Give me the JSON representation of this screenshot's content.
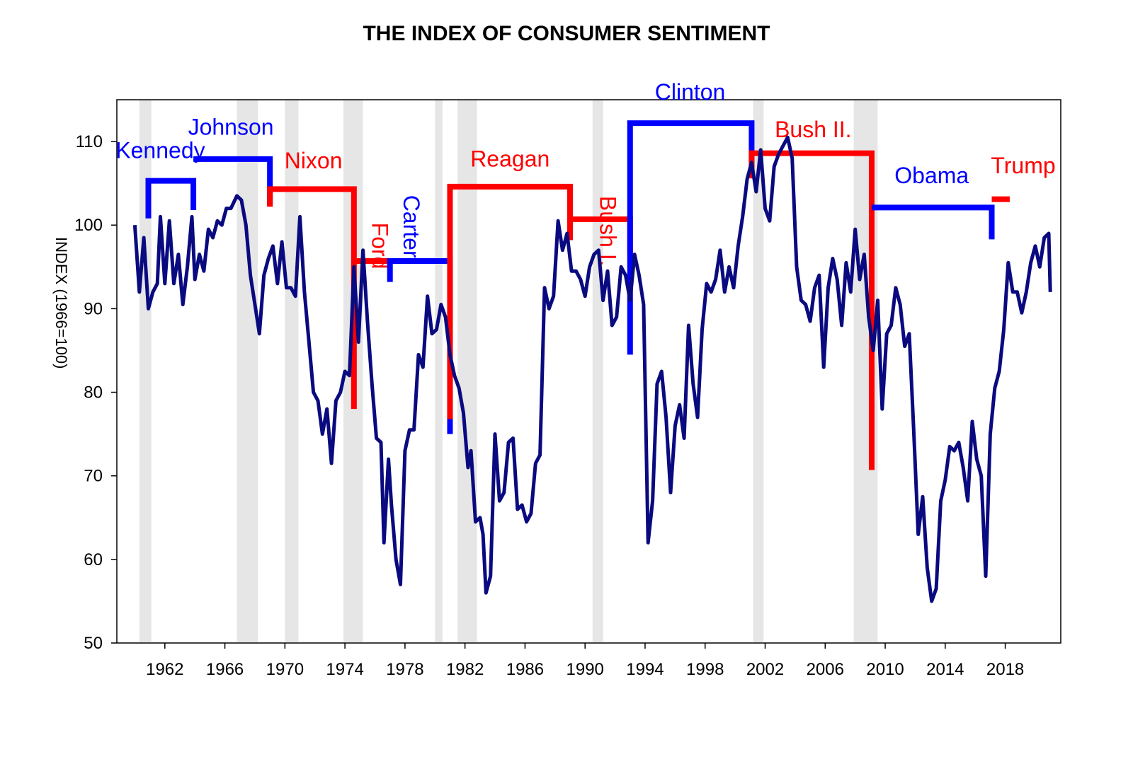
{
  "chart_data": {
    "type": "line",
    "title": "THE INDEX OF CONSUMER SENTIMENT",
    "ylabel": "INDEX (1966=100)",
    "xlabel": "",
    "xlim": [
      1958.5,
      2021.0
    ],
    "ylim": [
      50,
      115
    ],
    "y_ticks": [
      50,
      60,
      70,
      80,
      90,
      100,
      110
    ],
    "x_ticks": [
      1962,
      1966,
      1970,
      1974,
      1978,
      1982,
      1986,
      1990,
      1994,
      1998,
      2002,
      2006,
      2010,
      2014,
      2018
    ],
    "colors": {
      "line": "#0a0a80",
      "democrat": "#0000ff",
      "republican": "#ff0000",
      "recession": "#e6e6e6"
    },
    "recessions": [
      [
        1960.3,
        1961.1
      ],
      [
        1966.8,
        1968.2
      ],
      [
        1970.0,
        1970.9
      ],
      [
        1973.9,
        1975.2
      ],
      [
        1980.0,
        1980.5
      ],
      [
        1981.5,
        1982.8
      ],
      [
        1990.5,
        1991.2
      ],
      [
        2001.2,
        2001.9
      ],
      [
        2007.9,
        2009.5
      ]
    ],
    "presidents": [
      {
        "name": "Kennedy",
        "party": "D",
        "start": 1960.9,
        "end": 1963.9,
        "level": 105.3,
        "tick_start": 100.8,
        "tick_end": 101.8,
        "label_x": 1961.7,
        "label_y": 108.0,
        "vertical": false
      },
      {
        "name": "Johnson",
        "party": "D",
        "start": 1963.9,
        "end": 1969.0,
        "level": 107.9,
        "tick_end": 102.5,
        "label_x": 1966.4,
        "label_y": 110.8,
        "vertical": false
      },
      {
        "name": "Nixon",
        "party": "R",
        "start": 1969.0,
        "end": 1974.6,
        "level": 104.3,
        "tick_start": 102.2,
        "tick_end": 78.0,
        "label_x": 1971.9,
        "label_y": 106.8,
        "vertical": false
      },
      {
        "name": "Ford",
        "party": "R",
        "start": 1974.6,
        "end": 1977.0,
        "level": 95.7,
        "label_x": 1975.8,
        "label_y": 100.3,
        "vertical": true
      },
      {
        "name": "Carter",
        "party": "D",
        "start": 1977.0,
        "end": 1981.0,
        "level": 95.7,
        "tick_start": 93.2,
        "tick_end": 75.0,
        "label_x": 1977.9,
        "label_y": 103.6,
        "vertical": true
      },
      {
        "name": "Reagan",
        "party": "R",
        "start": 1981.0,
        "end": 1989.0,
        "level": 104.6,
        "tick_start": 76.8,
        "tick_end": 98.2,
        "label_x": 1985.0,
        "label_y": 107.0,
        "vertical": false
      },
      {
        "name": "Bush I.",
        "party": "R",
        "start": 1989.0,
        "end": 1993.0,
        "level": 100.7,
        "tick_end": 96.5,
        "label_x": 1991.0,
        "label_y": 103.5,
        "vertical": true
      },
      {
        "name": "Clinton",
        "party": "D",
        "start": 1993.0,
        "end": 2001.1,
        "level": 112.2,
        "tick_start": 84.5,
        "tick_end": 106.6,
        "label_x": 1997.0,
        "label_y": 115.0,
        "vertical": false
      },
      {
        "name": "Bush II.",
        "party": "R",
        "start": 2001.1,
        "end": 2009.1,
        "level": 108.6,
        "tick_start": 105.6,
        "tick_end": 70.7,
        "label_x": 2005.2,
        "label_y": 110.5,
        "vertical": false
      },
      {
        "name": "Obama",
        "party": "D",
        "start": 2009.1,
        "end": 2017.1,
        "level": 102.1,
        "tick_end": 98.3,
        "label_x": 2013.1,
        "label_y": 105.0,
        "vertical": false
      },
      {
        "name": "Trump",
        "party": "R",
        "start": 2017.1,
        "end": 2018.3,
        "level": 103.1,
        "label_x": 2019.2,
        "label_y": 106.2,
        "vertical": false
      }
    ],
    "series": [
      {
        "name": "Index of Consumer Sentiment",
        "points": [
          [
            1960.0,
            100.0
          ],
          [
            1960.3,
            92.0
          ],
          [
            1960.6,
            98.5
          ],
          [
            1960.9,
            90.0
          ],
          [
            1961.2,
            92.0
          ],
          [
            1961.5,
            93.0
          ],
          [
            1961.7,
            101.0
          ],
          [
            1962.0,
            93.0
          ],
          [
            1962.3,
            100.5
          ],
          [
            1962.6,
            93.0
          ],
          [
            1962.9,
            96.5
          ],
          [
            1963.2,
            90.5
          ],
          [
            1963.5,
            95.0
          ],
          [
            1963.8,
            101.0
          ],
          [
            1964.0,
            93.5
          ],
          [
            1964.3,
            96.5
          ],
          [
            1964.6,
            94.5
          ],
          [
            1964.9,
            99.5
          ],
          [
            1965.2,
            98.5
          ],
          [
            1965.5,
            100.5
          ],
          [
            1965.8,
            100.0
          ],
          [
            1966.1,
            102.0
          ],
          [
            1966.4,
            102.0
          ],
          [
            1966.8,
            103.5
          ],
          [
            1967.1,
            103.0
          ],
          [
            1967.4,
            100.0
          ],
          [
            1967.7,
            94.0
          ],
          [
            1968.0,
            90.5
          ],
          [
            1968.3,
            87.0
          ],
          [
            1968.6,
            94.0
          ],
          [
            1968.9,
            96.0
          ],
          [
            1969.2,
            97.5
          ],
          [
            1969.5,
            93.0
          ],
          [
            1969.8,
            98.0
          ],
          [
            1970.1,
            92.5
          ],
          [
            1970.4,
            92.5
          ],
          [
            1970.7,
            91.5
          ],
          [
            1971.0,
            101.0
          ],
          [
            1971.3,
            92.0
          ],
          [
            1971.6,
            86.0
          ],
          [
            1971.9,
            80.0
          ],
          [
            1972.2,
            79.0
          ],
          [
            1972.5,
            75.0
          ],
          [
            1972.8,
            78.0
          ],
          [
            1973.1,
            71.5
          ],
          [
            1973.4,
            79.0
          ],
          [
            1973.7,
            80.0
          ],
          [
            1974.0,
            82.5
          ],
          [
            1974.3,
            82.0
          ],
          [
            1974.6,
            95.0
          ],
          [
            1974.9,
            86.0
          ],
          [
            1975.2,
            97.0
          ],
          [
            1975.5,
            88.5
          ],
          [
            1975.8,
            81.0
          ],
          [
            1976.1,
            74.5
          ],
          [
            1976.4,
            74.0
          ],
          [
            1976.6,
            62.0
          ],
          [
            1976.9,
            72.0
          ],
          [
            1977.1,
            66.5
          ],
          [
            1977.4,
            60.0
          ],
          [
            1977.7,
            57.0
          ],
          [
            1978.0,
            73.0
          ],
          [
            1978.3,
            75.5
          ],
          [
            1978.6,
            75.5
          ],
          [
            1978.9,
            84.5
          ],
          [
            1979.2,
            83.0
          ],
          [
            1979.5,
            91.5
          ],
          [
            1979.8,
            87.0
          ],
          [
            1980.1,
            87.5
          ],
          [
            1980.4,
            90.5
          ],
          [
            1980.7,
            89.0
          ],
          [
            1981.0,
            84.5
          ],
          [
            1981.3,
            82.0
          ],
          [
            1981.6,
            80.5
          ],
          [
            1981.9,
            77.5
          ],
          [
            1982.2,
            71.0
          ],
          [
            1982.4,
            73.0
          ],
          [
            1982.7,
            64.5
          ],
          [
            1983.0,
            65.0
          ],
          [
            1983.2,
            63.0
          ],
          [
            1983.4,
            56.0
          ],
          [
            1983.7,
            58.0
          ],
          [
            1984.0,
            75.0
          ],
          [
            1984.3,
            67.0
          ],
          [
            1984.6,
            68.0
          ],
          [
            1984.9,
            74.0
          ],
          [
            1985.2,
            74.5
          ],
          [
            1985.5,
            66.0
          ],
          [
            1985.8,
            66.5
          ],
          [
            1986.1,
            64.5
          ],
          [
            1986.4,
            65.5
          ],
          [
            1986.7,
            71.5
          ],
          [
            1987.0,
            72.5
          ],
          [
            1987.3,
            92.5
          ],
          [
            1987.6,
            90.0
          ],
          [
            1987.9,
            91.5
          ],
          [
            1988.2,
            100.5
          ],
          [
            1988.5,
            97.0
          ],
          [
            1988.8,
            99.0
          ],
          [
            1989.1,
            94.5
          ],
          [
            1989.4,
            94.5
          ],
          [
            1989.7,
            93.5
          ],
          [
            1990.0,
            91.5
          ],
          [
            1990.3,
            95.0
          ],
          [
            1990.6,
            96.5
          ],
          [
            1990.9,
            97.0
          ],
          [
            1991.2,
            91.0
          ],
          [
            1991.5,
            94.5
          ],
          [
            1991.8,
            88.0
          ],
          [
            1992.1,
            89.0
          ],
          [
            1992.4,
            95.0
          ],
          [
            1992.7,
            94.0
          ],
          [
            1993.0,
            91.0
          ],
          [
            1993.3,
            96.5
          ],
          [
            1993.6,
            94.0
          ],
          [
            1993.9,
            90.5
          ],
          [
            1994.2,
            62.0
          ],
          [
            1994.5,
            67.0
          ],
          [
            1994.8,
            81.0
          ],
          [
            1995.1,
            82.5
          ],
          [
            1995.4,
            77.0
          ],
          [
            1995.7,
            68.0
          ],
          [
            1996.0,
            76.0
          ],
          [
            1996.3,
            78.5
          ],
          [
            1996.6,
            74.5
          ],
          [
            1996.9,
            88.0
          ],
          [
            1997.2,
            81.0
          ],
          [
            1997.5,
            77.0
          ],
          [
            1997.8,
            87.5
          ],
          [
            1998.1,
            93.0
          ],
          [
            1998.4,
            92.0
          ],
          [
            1998.7,
            93.5
          ],
          [
            1999.0,
            97.0
          ],
          [
            1999.3,
            92.0
          ],
          [
            1999.6,
            95.0
          ],
          [
            1999.9,
            92.5
          ],
          [
            2000.2,
            97.5
          ],
          [
            2000.5,
            101.0
          ],
          [
            2000.8,
            105.5
          ],
          [
            2001.1,
            107.5
          ],
          [
            2001.4,
            104.0
          ],
          [
            2001.7,
            109.0
          ],
          [
            2002.0,
            102.0
          ],
          [
            2002.3,
            100.5
          ],
          [
            2002.6,
            107.0
          ],
          [
            2002.9,
            108.5
          ],
          [
            2003.2,
            109.5
          ],
          [
            2003.5,
            110.5
          ],
          [
            2003.8,
            108.0
          ],
          [
            2004.1,
            95.0
          ],
          [
            2004.4,
            91.0
          ],
          [
            2004.7,
            90.5
          ],
          [
            2005.0,
            88.5
          ],
          [
            2005.3,
            92.5
          ],
          [
            2005.6,
            94.0
          ],
          [
            2005.9,
            83.0
          ],
          [
            2006.2,
            92.5
          ],
          [
            2006.5,
            96.0
          ],
          [
            2006.8,
            93.5
          ],
          [
            2007.1,
            88.0
          ],
          [
            2007.4,
            95.5
          ],
          [
            2007.7,
            92.0
          ],
          [
            2008.0,
            99.5
          ],
          [
            2008.3,
            93.5
          ],
          [
            2008.6,
            96.5
          ],
          [
            2008.9,
            89.0
          ],
          [
            2009.2,
            85.0
          ],
          [
            2009.5,
            91.0
          ],
          [
            2009.8,
            78.0
          ],
          [
            2010.1,
            87.0
          ],
          [
            2010.4,
            88.0
          ],
          [
            2010.7,
            92.5
          ],
          [
            2011.0,
            90.5
          ],
          [
            2011.3,
            85.5
          ],
          [
            2011.6,
            87.0
          ],
          [
            2011.9,
            75.5
          ],
          [
            2012.2,
            63.0
          ],
          [
            2012.5,
            67.5
          ],
          [
            2012.8,
            59.0
          ],
          [
            2013.1,
            55.0
          ],
          [
            2013.4,
            56.5
          ],
          [
            2013.7,
            67.0
          ],
          [
            2014.0,
            69.5
          ],
          [
            2014.3,
            73.5
          ],
          [
            2014.6,
            73.0
          ],
          [
            2014.9,
            74.0
          ],
          [
            2015.2,
            71.0
          ],
          [
            2015.5,
            67.0
          ],
          [
            2015.8,
            76.5
          ],
          [
            2016.1,
            72.0
          ],
          [
            2016.4,
            70.0
          ],
          [
            2016.7,
            58.0
          ],
          [
            2017.0,
            75.0
          ],
          [
            2017.3,
            80.5
          ],
          [
            2017.6,
            82.5
          ],
          [
            2017.9,
            87.5
          ],
          [
            2018.2,
            95.5
          ],
          [
            2018.5,
            92.0
          ],
          [
            2018.8,
            92.0
          ],
          [
            2019.1,
            89.5
          ],
          [
            2019.4,
            92.0
          ],
          [
            2019.7,
            95.5
          ],
          [
            2020.0,
            97.5
          ],
          [
            2020.3,
            95.0
          ],
          [
            2020.6,
            98.5
          ],
          [
            2020.9,
            99.0
          ],
          [
            2021.0,
            92.0
          ]
        ]
      }
    ]
  }
}
